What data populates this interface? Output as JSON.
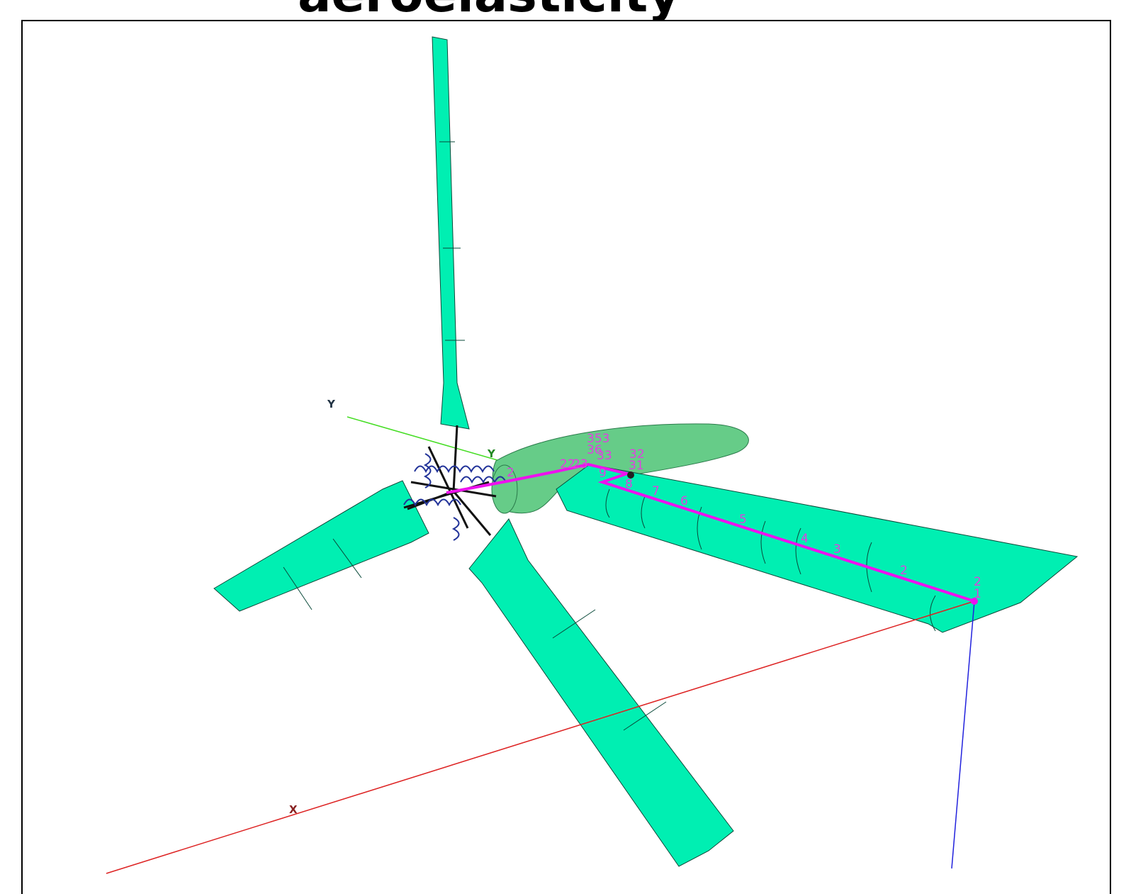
{
  "header": {
    "title": "aeroelasticity"
  },
  "axes": {
    "y_outer": "Y",
    "y_inner": "Y",
    "x": "X"
  },
  "node_labels": [
    "2",
    "1",
    "2",
    "3",
    "4",
    "5",
    "6",
    "7",
    "8",
    "9",
    "31",
    "32",
    "33",
    "36",
    "353",
    "22",
    "23",
    "2"
  ]
}
